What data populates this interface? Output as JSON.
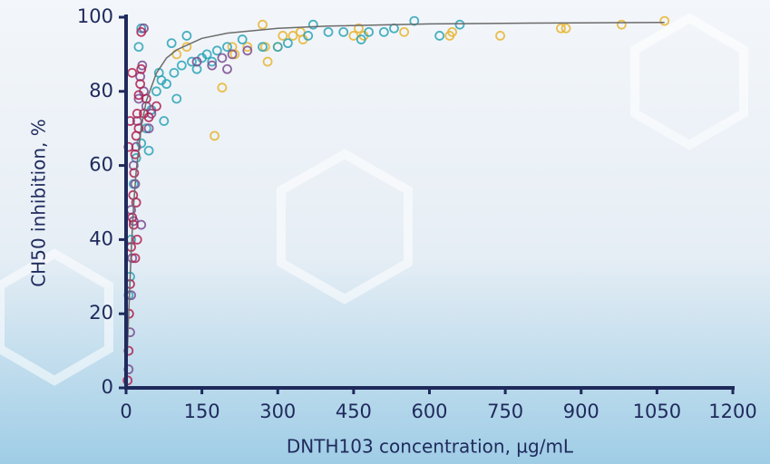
{
  "chart_data": {
    "type": "scatter",
    "x_label": "DNTH103 concentration, µg/mL",
    "y_label": "CH50 inhibition, %",
    "xlim": [
      0,
      1200
    ],
    "xticks": [
      0,
      150,
      300,
      450,
      600,
      750,
      900,
      1050,
      1200
    ],
    "ylim": [
      0,
      100
    ],
    "yticks": [
      0,
      20,
      40,
      60,
      80,
      100
    ],
    "series": [
      {
        "color": "#e8b42e",
        "x": [
          270,
          280,
          275,
          300,
          310,
          330,
          345,
          350,
          210,
          215,
          190,
          175,
          240,
          450,
          460,
          470,
          550,
          640,
          645,
          740,
          860,
          870,
          980,
          1065,
          100,
          120
        ],
        "values": [
          98,
          88,
          92,
          92,
          95,
          95,
          96,
          94,
          92,
          90,
          81,
          68,
          92,
          95,
          97,
          95,
          96,
          95,
          96,
          95,
          97,
          97,
          98,
          99,
          90,
          92
        ]
      },
      {
        "color": "#2aa3b6",
        "x": [
          370,
          400,
          430,
          465,
          480,
          510,
          530,
          570,
          620,
          660,
          270,
          300,
          320,
          360,
          230,
          200,
          180,
          160,
          150,
          130,
          110,
          95,
          80,
          70,
          60,
          50,
          40,
          30,
          20,
          15,
          10,
          8,
          5,
          100,
          75,
          45,
          65,
          90,
          120,
          140,
          170,
          30,
          25
        ],
        "values": [
          98,
          96,
          96,
          94,
          96,
          96,
          97,
          99,
          95,
          98,
          92,
          92,
          93,
          95,
          94,
          92,
          91,
          90,
          89,
          88,
          87,
          85,
          82,
          83,
          80,
          75,
          70,
          66,
          62,
          55,
          40,
          30,
          25,
          78,
          72,
          64,
          85,
          93,
          95,
          86,
          88,
          97,
          92
        ]
      },
      {
        "color": "#7a4a8f",
        "x": [
          5,
          8,
          10,
          12,
          15,
          18,
          20,
          22,
          25,
          28,
          32,
          35,
          40,
          45,
          50,
          30,
          140,
          170,
          190,
          200,
          210,
          240,
          35,
          10,
          15
        ],
        "values": [
          5,
          15,
          25,
          35,
          45,
          55,
          65,
          72,
          78,
          84,
          87,
          80,
          76,
          70,
          74,
          44,
          88,
          87,
          89,
          86,
          90,
          91,
          97,
          48,
          60
        ]
      },
      {
        "color": "#b0204f",
        "x": [
          3,
          5,
          6,
          8,
          10,
          12,
          14,
          16,
          18,
          20,
          22,
          25,
          28,
          30,
          15,
          20,
          25,
          35,
          40,
          45,
          60,
          12,
          8,
          5,
          18,
          22,
          30
        ],
        "values": [
          2,
          10,
          20,
          28,
          38,
          46,
          52,
          58,
          63,
          68,
          74,
          79,
          82,
          86,
          44,
          50,
          70,
          74,
          78,
          73,
          76,
          85,
          72,
          65,
          35,
          40,
          96
        ]
      }
    ],
    "fit": {
      "color": "#6b6b6b",
      "x": [
        0,
        5,
        10,
        15,
        20,
        30,
        40,
        60,
        80,
        100,
        150,
        200,
        300,
        400,
        600,
        800,
        1065
      ],
      "values": [
        0,
        19.2,
        36.7,
        49.5,
        58.6,
        70.3,
        77.4,
        84.9,
        89.0,
        91.2,
        94.3,
        95.7,
        97.0,
        97.6,
        98.2,
        98.4,
        98.6
      ]
    }
  }
}
